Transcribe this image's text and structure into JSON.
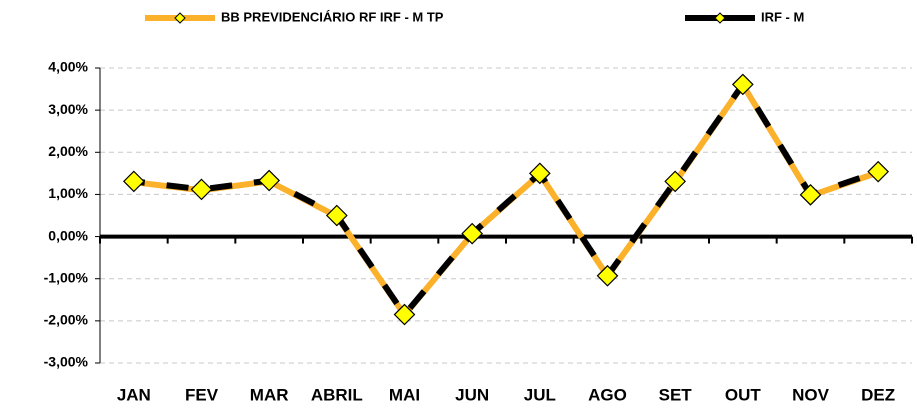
{
  "chart_data": {
    "type": "line",
    "categories": [
      "JAN",
      "FEV",
      "MAR",
      "ABRIL",
      "MAI",
      "JUN",
      "JUL",
      "AGO",
      "SET",
      "OUT",
      "NOV",
      "DEZ"
    ],
    "series": [
      {
        "name": "BB PREVIDENCIÁRIO RF IRF - M TP",
        "color": "#fbb12a",
        "values": [
          1.29,
          1.1,
          1.31,
          0.48,
          -1.86,
          0.06,
          1.48,
          -0.94,
          1.29,
          3.6,
          0.97,
          1.52
        ]
      },
      {
        "name": "IRF - M",
        "color": "#000000",
        "values": [
          1.31,
          1.12,
          1.33,
          0.5,
          -1.85,
          0.07,
          1.5,
          -0.93,
          1.31,
          3.61,
          0.99,
          1.54
        ]
      }
    ],
    "marker_color": "#ffff00",
    "ylim": [
      -3,
      4
    ],
    "yticks": [
      {
        "value": -3,
        "label": "-3,00%"
      },
      {
        "value": -2,
        "label": "-2,00%"
      },
      {
        "value": -1,
        "label": "-1,00%"
      },
      {
        "value": 0,
        "label": "0,00%"
      },
      {
        "value": 1,
        "label": "1,00%"
      },
      {
        "value": 2,
        "label": "2,00%"
      },
      {
        "value": 3,
        "label": "3,00%"
      },
      {
        "value": 4,
        "label": "4,00%"
      }
    ],
    "grid": true,
    "legend": "top"
  }
}
